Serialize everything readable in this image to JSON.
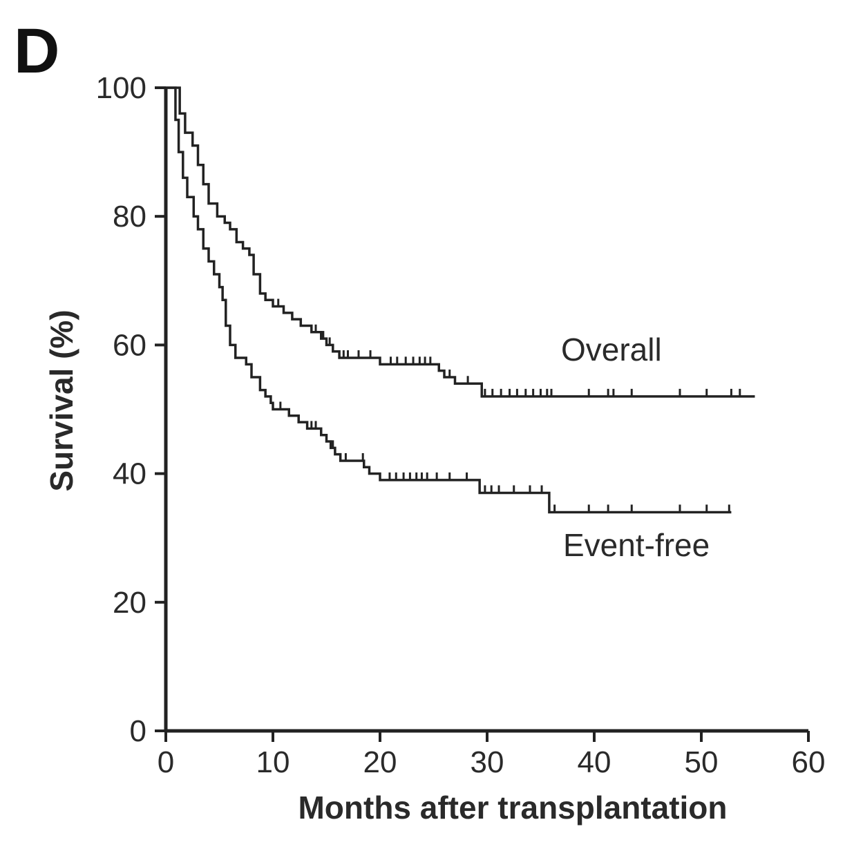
{
  "panel_label": "D",
  "chart_data": {
    "type": "line",
    "step": true,
    "xlabel": "Months after transplantation",
    "ylabel": "Survival (%)",
    "xlim": [
      0,
      60
    ],
    "ylim": [
      0,
      100
    ],
    "x_ticks": [
      0,
      10,
      20,
      30,
      40,
      50,
      60
    ],
    "y_ticks": [
      0,
      20,
      40,
      60,
      80,
      100
    ],
    "grid": false,
    "series": [
      {
        "name": "Overall",
        "points": [
          [
            0,
            100
          ],
          [
            1,
            100
          ],
          [
            1.3,
            96
          ],
          [
            1.8,
            93
          ],
          [
            2.5,
            91
          ],
          [
            3,
            88
          ],
          [
            3.5,
            85
          ],
          [
            4,
            82
          ],
          [
            4.8,
            80
          ],
          [
            5.5,
            79
          ],
          [
            6,
            78
          ],
          [
            6.6,
            76
          ],
          [
            7.2,
            75
          ],
          [
            7.8,
            74
          ],
          [
            8.2,
            71
          ],
          [
            8.8,
            68
          ],
          [
            9.3,
            67
          ],
          [
            10,
            66
          ],
          [
            11,
            65
          ],
          [
            11.8,
            64
          ],
          [
            12.6,
            63
          ],
          [
            13.6,
            62
          ],
          [
            14.5,
            61
          ],
          [
            15,
            60
          ],
          [
            15.6,
            59
          ],
          [
            16.2,
            58
          ],
          [
            20,
            57
          ],
          [
            25.5,
            56
          ],
          [
            26,
            55
          ],
          [
            27,
            54
          ],
          [
            29.5,
            52
          ],
          [
            55,
            52
          ]
        ],
        "censored_x": [
          10.5,
          14,
          14.7,
          15.3,
          16.6,
          17,
          18,
          19.1,
          21,
          21.6,
          22.4,
          23.1,
          23.7,
          24.2,
          24.7,
          26.5,
          28.2,
          29.8,
          30.5,
          31.3,
          32.1,
          32.8,
          33.6,
          34.3,
          35,
          35.6,
          36,
          39.5,
          41.3,
          41.8,
          43.5,
          48,
          50.5,
          52.8,
          53.6
        ],
        "label": "Overall"
      },
      {
        "name": "Event-free",
        "points": [
          [
            0,
            100
          ],
          [
            0.6,
            100
          ],
          [
            0.9,
            95
          ],
          [
            1.2,
            90
          ],
          [
            1.6,
            86
          ],
          [
            2,
            83
          ],
          [
            2.6,
            80
          ],
          [
            3,
            78
          ],
          [
            3.5,
            75
          ],
          [
            4,
            73
          ],
          [
            4.5,
            71
          ],
          [
            5,
            69
          ],
          [
            5.3,
            67
          ],
          [
            5.6,
            63
          ],
          [
            6,
            60
          ],
          [
            6.5,
            58
          ],
          [
            7.5,
            57
          ],
          [
            8,
            55
          ],
          [
            8.8,
            53
          ],
          [
            9.3,
            52
          ],
          [
            9.8,
            51
          ],
          [
            10,
            50
          ],
          [
            11.5,
            49
          ],
          [
            12.4,
            48
          ],
          [
            13.2,
            47
          ],
          [
            14.5,
            46
          ],
          [
            15,
            45
          ],
          [
            15.4,
            44
          ],
          [
            15.8,
            43
          ],
          [
            16.3,
            42
          ],
          [
            18.5,
            41
          ],
          [
            19,
            40
          ],
          [
            20,
            39
          ],
          [
            29.3,
            37
          ],
          [
            35.5,
            37
          ],
          [
            35.8,
            34
          ],
          [
            52.8,
            34
          ]
        ],
        "censored_x": [
          10.7,
          13.6,
          14,
          15,
          15.6,
          16.8,
          18.4,
          20.9,
          21.5,
          22.2,
          22.8,
          23.4,
          23.9,
          24.4,
          25.3,
          26.5,
          28.1,
          29.8,
          30.4,
          31.1,
          32.5,
          34,
          35.1,
          36.3,
          39.5,
          41.3,
          43.5,
          48,
          50.5,
          52.6
        ],
        "label": "Event-free"
      }
    ]
  }
}
